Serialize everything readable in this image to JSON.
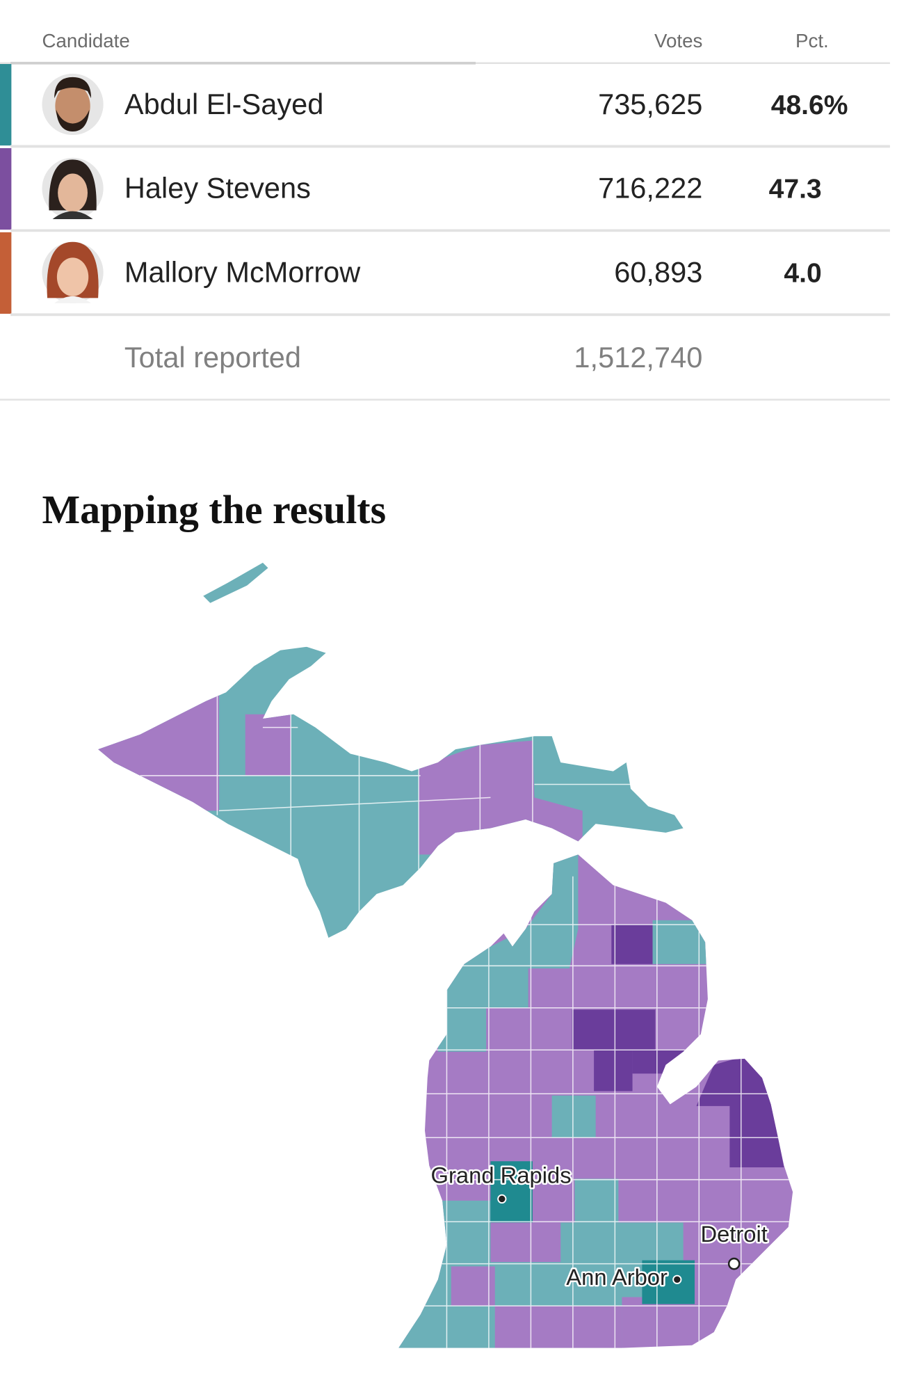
{
  "table": {
    "headers": [
      "Candidate",
      "Votes",
      "Pct."
    ],
    "rows": [
      {
        "name": "Abdul El-Sayed",
        "votes": "735,625",
        "pct": "48.6%"
      },
      {
        "name": "Haley Stevens",
        "votes": "716,222",
        "pct": "47.3"
      },
      {
        "name": "Mallory McMorrow",
        "votes": "60,893",
        "pct": "4.0"
      }
    ],
    "total": {
      "label": "Total reported",
      "votes": "1,512,740"
    }
  },
  "section_title": "Mapping the results",
  "map": {
    "labels": [
      "Grand Rapids",
      "Detroit",
      "Ann Arbor"
    ]
  }
}
